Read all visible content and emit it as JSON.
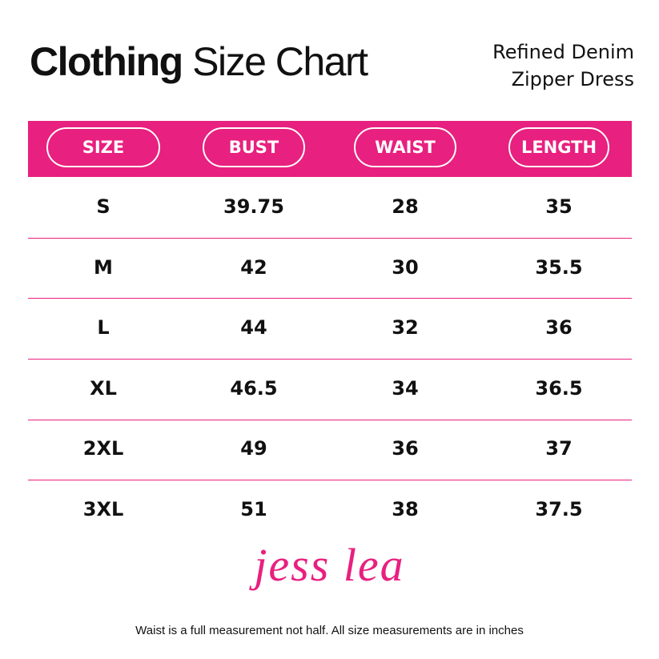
{
  "header": {
    "title_bold": "Clothing",
    "title_rest": "Size Chart",
    "product": [
      "Refined Denim",
      "Zipper Dress"
    ]
  },
  "table": {
    "columns": [
      "SIZE",
      "BUST",
      "WAIST",
      "LENGTH"
    ],
    "rows": [
      [
        "S",
        39.75,
        28,
        35
      ],
      [
        "M",
        42,
        30,
        35.5
      ],
      [
        "L",
        44,
        32,
        36
      ],
      [
        "XL",
        46.5,
        34,
        36.5
      ],
      [
        "2XL",
        49,
        36,
        37
      ],
      [
        "3XL",
        51,
        38,
        37.5
      ]
    ]
  },
  "logo": "jess lea",
  "note": "Waist is a full measurement not half. All size measurements are in inches"
}
